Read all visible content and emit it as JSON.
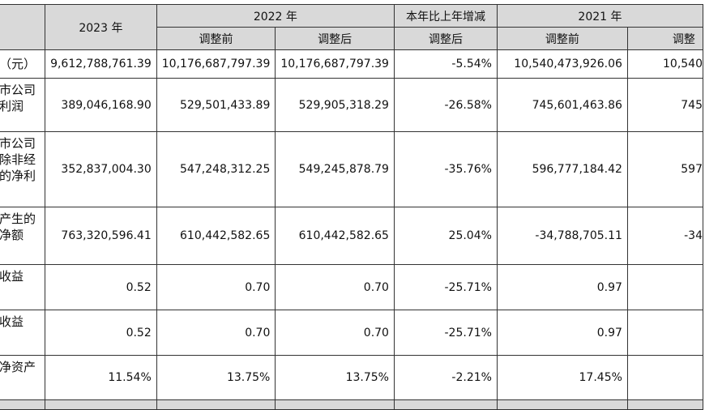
{
  "headers": {
    "y2023": "2023 年",
    "y2022": "2022 年",
    "yoy": "本年比上年增减",
    "y2021": "2021 年",
    "before": "调整前",
    "after": "调整后",
    "after_yoy": "调整后",
    "before_2021": "调整前",
    "after_2021_partial": "调整"
  },
  "rows": [
    {
      "label": "（元）",
      "v2023": "9,612,788,761.39",
      "v2022_before": "10,176,687,797.39",
      "v2022_after": "10,176,687,797.39",
      "yoy": "-5.54%",
      "v2021_before": "10,540,473,926.06",
      "v2021_after": "10,540"
    },
    {
      "label": "市公司\n利润",
      "v2023": "389,046,168.90",
      "v2022_before": "529,501,433.89",
      "v2022_after": "529,905,318.29",
      "yoy": "-26.58%",
      "v2021_before": "745,601,463.86",
      "v2021_after": "745"
    },
    {
      "label": "市公司\n除非经\n的净利",
      "v2023": "352,837,004.30",
      "v2022_before": "547,248,312.25",
      "v2022_after": "549,245,878.79",
      "yoy": "-35.76%",
      "v2021_before": "596,777,184.42",
      "v2021_after": "597"
    },
    {
      "label": "产生的\n净额",
      "v2023": "763,320,596.41",
      "v2022_before": "610,442,582.65",
      "v2022_after": "610,442,582.65",
      "yoy": "25.04%",
      "v2021_before": "-34,788,705.11",
      "v2021_after": "-34"
    },
    {
      "label": "收益",
      "v2023": "0.52",
      "v2022_before": "0.70",
      "v2022_after": "0.70",
      "yoy": "-25.71%",
      "v2021_before": "0.97",
      "v2021_after": ""
    },
    {
      "label": "收益",
      "v2023": "0.52",
      "v2022_before": "0.70",
      "v2022_after": "0.70",
      "yoy": "-25.71%",
      "v2021_before": "0.97",
      "v2021_after": ""
    },
    {
      "label": "净资产",
      "v2023": "11.54%",
      "v2022_before": "13.75%",
      "v2022_after": "13.75%",
      "yoy": "-2.21%",
      "v2021_before": "17.45%",
      "v2021_after": ""
    }
  ]
}
